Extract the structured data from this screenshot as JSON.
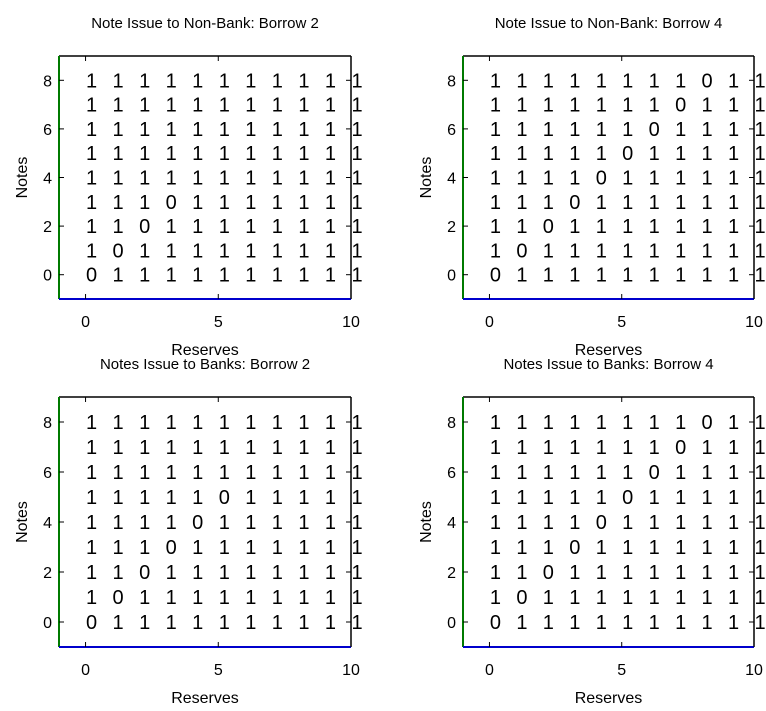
{
  "chart_data": [
    {
      "type": "table",
      "title": "Note Issue to Non-Bank: Borrow 2",
      "xlabel": "Reserves",
      "ylabel": "Notes",
      "xlim": [
        -1,
        10
      ],
      "ylim": [
        -1,
        9
      ],
      "xticks": [
        "0",
        "5",
        "10"
      ],
      "yticks": [
        "0",
        "2",
        "4",
        "6",
        "8"
      ],
      "x": [
        0,
        1,
        2,
        3,
        4,
        5,
        6,
        7,
        8,
        9,
        10
      ],
      "y": [
        0,
        1,
        2,
        3,
        4,
        5,
        6,
        7,
        8
      ],
      "values": [
        [
          0,
          1,
          1,
          1,
          1,
          1,
          1,
          1,
          1,
          1,
          1
        ],
        [
          1,
          0,
          1,
          1,
          1,
          1,
          1,
          1,
          1,
          1,
          1
        ],
        [
          1,
          1,
          0,
          1,
          1,
          1,
          1,
          1,
          1,
          1,
          1
        ],
        [
          1,
          1,
          1,
          0,
          1,
          1,
          1,
          1,
          1,
          1,
          1
        ],
        [
          1,
          1,
          1,
          1,
          1,
          1,
          1,
          1,
          1,
          1,
          1
        ],
        [
          1,
          1,
          1,
          1,
          1,
          1,
          1,
          1,
          1,
          1,
          1
        ],
        [
          1,
          1,
          1,
          1,
          1,
          1,
          1,
          1,
          1,
          1,
          1
        ],
        [
          1,
          1,
          1,
          1,
          1,
          1,
          1,
          1,
          1,
          1,
          1
        ],
        [
          1,
          1,
          1,
          1,
          1,
          1,
          1,
          1,
          1,
          1,
          1
        ]
      ]
    },
    {
      "type": "table",
      "title": "Note Issue to Non-Bank: Borrow 4",
      "xlabel": "Reserves",
      "ylabel": "Notes",
      "xlim": [
        -1,
        10
      ],
      "ylim": [
        -1,
        9
      ],
      "xticks": [
        "0",
        "5",
        "10"
      ],
      "yticks": [
        "0",
        "2",
        "4",
        "6",
        "8"
      ],
      "x": [
        0,
        1,
        2,
        3,
        4,
        5,
        6,
        7,
        8,
        9,
        10
      ],
      "y": [
        0,
        1,
        2,
        3,
        4,
        5,
        6,
        7,
        8
      ],
      "values": [
        [
          0,
          1,
          1,
          1,
          1,
          1,
          1,
          1,
          1,
          1,
          1
        ],
        [
          1,
          0,
          1,
          1,
          1,
          1,
          1,
          1,
          1,
          1,
          1
        ],
        [
          1,
          1,
          0,
          1,
          1,
          1,
          1,
          1,
          1,
          1,
          1
        ],
        [
          1,
          1,
          1,
          0,
          1,
          1,
          1,
          1,
          1,
          1,
          1
        ],
        [
          1,
          1,
          1,
          1,
          0,
          1,
          1,
          1,
          1,
          1,
          1
        ],
        [
          1,
          1,
          1,
          1,
          1,
          0,
          1,
          1,
          1,
          1,
          1
        ],
        [
          1,
          1,
          1,
          1,
          1,
          1,
          0,
          1,
          1,
          1,
          1
        ],
        [
          1,
          1,
          1,
          1,
          1,
          1,
          1,
          0,
          1,
          1,
          1
        ],
        [
          1,
          1,
          1,
          1,
          1,
          1,
          1,
          1,
          0,
          1,
          1
        ]
      ]
    },
    {
      "type": "table",
      "title": "Notes Issue to Banks: Borrow 2",
      "xlabel": "Reserves",
      "ylabel": "Notes",
      "xlim": [
        -1,
        10
      ],
      "ylim": [
        -1,
        9
      ],
      "xticks": [
        "0",
        "5",
        "10"
      ],
      "yticks": [
        "0",
        "2",
        "4",
        "6",
        "8"
      ],
      "x": [
        0,
        1,
        2,
        3,
        4,
        5,
        6,
        7,
        8,
        9,
        10
      ],
      "y": [
        0,
        1,
        2,
        3,
        4,
        5,
        6,
        7,
        8
      ],
      "values": [
        [
          0,
          1,
          1,
          1,
          1,
          1,
          1,
          1,
          1,
          1,
          1
        ],
        [
          1,
          0,
          1,
          1,
          1,
          1,
          1,
          1,
          1,
          1,
          1
        ],
        [
          1,
          1,
          0,
          1,
          1,
          1,
          1,
          1,
          1,
          1,
          1
        ],
        [
          1,
          1,
          1,
          0,
          1,
          1,
          1,
          1,
          1,
          1,
          1
        ],
        [
          1,
          1,
          1,
          1,
          0,
          1,
          1,
          1,
          1,
          1,
          1
        ],
        [
          1,
          1,
          1,
          1,
          1,
          0,
          1,
          1,
          1,
          1,
          1
        ],
        [
          1,
          1,
          1,
          1,
          1,
          1,
          1,
          1,
          1,
          1,
          1
        ],
        [
          1,
          1,
          1,
          1,
          1,
          1,
          1,
          1,
          1,
          1,
          1
        ],
        [
          1,
          1,
          1,
          1,
          1,
          1,
          1,
          1,
          1,
          1,
          1
        ]
      ]
    },
    {
      "type": "table",
      "title": "Notes Issue to Banks: Borrow 4",
      "xlabel": "Reserves",
      "ylabel": "Notes",
      "xlim": [
        -1,
        10
      ],
      "ylim": [
        -1,
        9
      ],
      "xticks": [
        "0",
        "5",
        "10"
      ],
      "yticks": [
        "0",
        "2",
        "4",
        "6",
        "8"
      ],
      "x": [
        0,
        1,
        2,
        3,
        4,
        5,
        6,
        7,
        8,
        9,
        10
      ],
      "y": [
        0,
        1,
        2,
        3,
        4,
        5,
        6,
        7,
        8
      ],
      "values": [
        [
          0,
          1,
          1,
          1,
          1,
          1,
          1,
          1,
          1,
          1,
          1
        ],
        [
          1,
          0,
          1,
          1,
          1,
          1,
          1,
          1,
          1,
          1,
          1
        ],
        [
          1,
          1,
          0,
          1,
          1,
          1,
          1,
          1,
          1,
          1,
          1
        ],
        [
          1,
          1,
          1,
          0,
          1,
          1,
          1,
          1,
          1,
          1,
          1
        ],
        [
          1,
          1,
          1,
          1,
          0,
          1,
          1,
          1,
          1,
          1,
          1
        ],
        [
          1,
          1,
          1,
          1,
          1,
          0,
          1,
          1,
          1,
          1,
          1
        ],
        [
          1,
          1,
          1,
          1,
          1,
          1,
          0,
          1,
          1,
          1,
          1
        ],
        [
          1,
          1,
          1,
          1,
          1,
          1,
          1,
          0,
          1,
          1,
          1
        ],
        [
          1,
          1,
          1,
          1,
          1,
          1,
          1,
          1,
          0,
          1,
          1
        ]
      ]
    }
  ],
  "colors": {
    "axes": "#000000",
    "left_edge": "#007a00",
    "bottom_edge": "#0000cc"
  }
}
